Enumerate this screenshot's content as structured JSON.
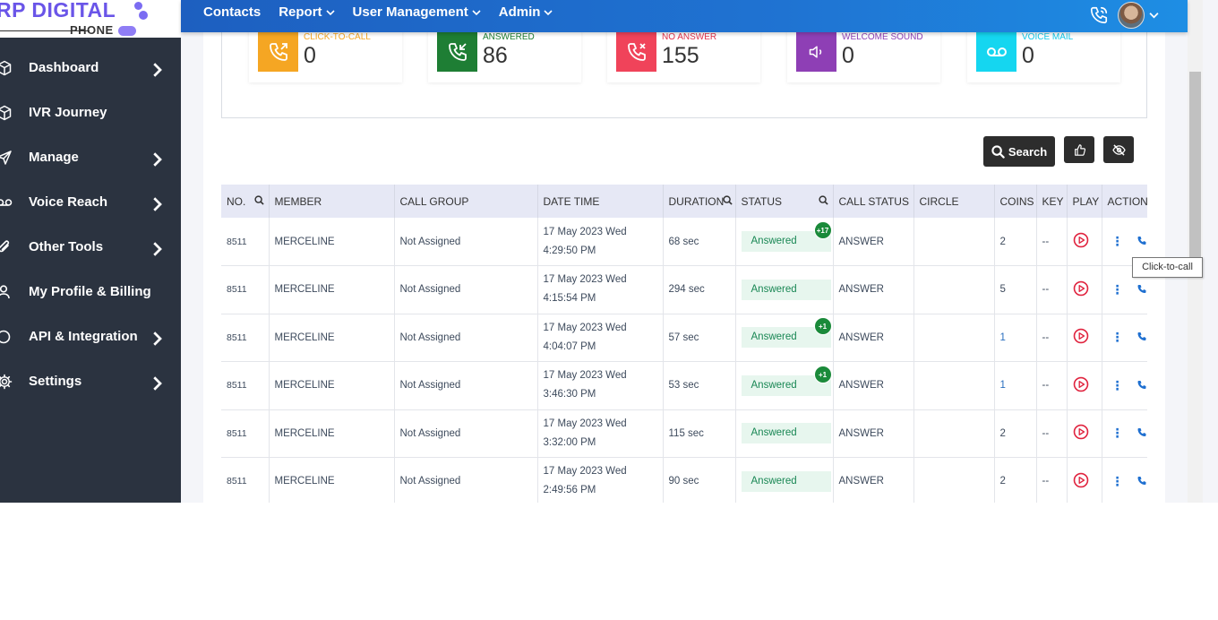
{
  "logo": {
    "brand": "RP DIGITAL",
    "sub": "PHONE"
  },
  "sidebar": {
    "items": [
      {
        "label": "Dashboard",
        "icon": "cube-icon",
        "has_chevron": true
      },
      {
        "label": "IVR Journey",
        "icon": "cube-icon",
        "has_chevron": false
      },
      {
        "label": "Manage",
        "icon": "send-icon",
        "has_chevron": true
      },
      {
        "label": "Voice Reach",
        "icon": "voicemail-icon",
        "has_chevron": true
      },
      {
        "label": "Other Tools",
        "icon": "paperclip-icon",
        "has_chevron": true
      },
      {
        "label": "My Profile & Billing",
        "icon": "user-icon",
        "has_chevron": false
      },
      {
        "label": "API & Integration",
        "icon": "circle-icon",
        "has_chevron": true
      },
      {
        "label": "Settings",
        "icon": "gear-icon",
        "has_chevron": true
      }
    ]
  },
  "topbar": {
    "menu": [
      {
        "label": "Contacts",
        "dropdown": false
      },
      {
        "label": "Report",
        "dropdown": true
      },
      {
        "label": "User Management",
        "dropdown": true
      },
      {
        "label": "Admin",
        "dropdown": true
      }
    ]
  },
  "stats": [
    {
      "label": "CLICK-TO-CALL",
      "value": "0",
      "color": "#f5a623",
      "label_color": "#f5a623",
      "icon": "phone-outgoing-icon"
    },
    {
      "label": "ANSWERED",
      "value": "86",
      "color": "#1e7e34",
      "label_color": "#1e7e34",
      "icon": "phone-incoming-icon"
    },
    {
      "label": "NO ANSWER",
      "value": "155",
      "color": "#f0435a",
      "label_color": "#e0304a",
      "icon": "phone-missed-icon"
    },
    {
      "label": "WELCOME SOUND",
      "value": "0",
      "color": "#8e3fb5",
      "label_color": "#8e3fb5",
      "icon": "speaker-icon"
    },
    {
      "label": "VOICE MAIL",
      "value": "0",
      "color": "#15d6f0",
      "label_color": "#15c8e8",
      "icon": "voicemail-icon"
    }
  ],
  "toolbar": {
    "search_label": "Search"
  },
  "table": {
    "headers": [
      "NO.",
      "MEMBER",
      "CALL GROUP",
      "DATE TIME",
      "DURATION",
      "STATUS",
      "CALL STATUS",
      "CIRCLE",
      "COINS",
      "KEY",
      "PLAY",
      "ACTION"
    ],
    "rows": [
      {
        "no": "8511",
        "member": "MERCELINE",
        "group": "Not Assigned",
        "date": "17 May 2023 Wed",
        "time": "4:29:50 PM",
        "duration": "68 sec",
        "status": "Answered",
        "badge": "+17",
        "call_status": "ANSWER",
        "circle": "",
        "coins": "2",
        "key": "--"
      },
      {
        "no": "8511",
        "member": "MERCELINE",
        "group": "Not Assigned",
        "date": "17 May 2023 Wed",
        "time": "4:15:54 PM",
        "duration": "294 sec",
        "status": "Answered",
        "badge": "",
        "call_status": "ANSWER",
        "circle": "",
        "coins": "5",
        "key": "--"
      },
      {
        "no": "8511",
        "member": "MERCELINE",
        "group": "Not Assigned",
        "date": "17 May 2023 Wed",
        "time": "4:04:07 PM",
        "duration": "57 sec",
        "status": "Answered",
        "badge": "+1",
        "call_status": "ANSWER",
        "circle": "",
        "coins": "1",
        "key": "--"
      },
      {
        "no": "8511",
        "member": "MERCELINE",
        "group": "Not Assigned",
        "date": "17 May 2023 Wed",
        "time": "3:46:30 PM",
        "duration": "53 sec",
        "status": "Answered",
        "badge": "+1",
        "call_status": "ANSWER",
        "circle": "",
        "coins": "1",
        "key": "--"
      },
      {
        "no": "8511",
        "member": "MERCELINE",
        "group": "Not Assigned",
        "date": "17 May 2023 Wed",
        "time": "3:32:00 PM",
        "duration": "115 sec",
        "status": "Answered",
        "badge": "",
        "call_status": "ANSWER",
        "circle": "",
        "coins": "2",
        "key": "--"
      },
      {
        "no": "8511",
        "member": "MERCELINE",
        "group": "Not Assigned",
        "date": "17 May 2023 Wed",
        "time": "2:49:56 PM",
        "duration": "90 sec",
        "status": "Answered",
        "badge": "",
        "call_status": "ANSWER",
        "circle": "",
        "coins": "2",
        "key": "--"
      }
    ]
  },
  "tooltip": {
    "text": "Click-to-call"
  }
}
